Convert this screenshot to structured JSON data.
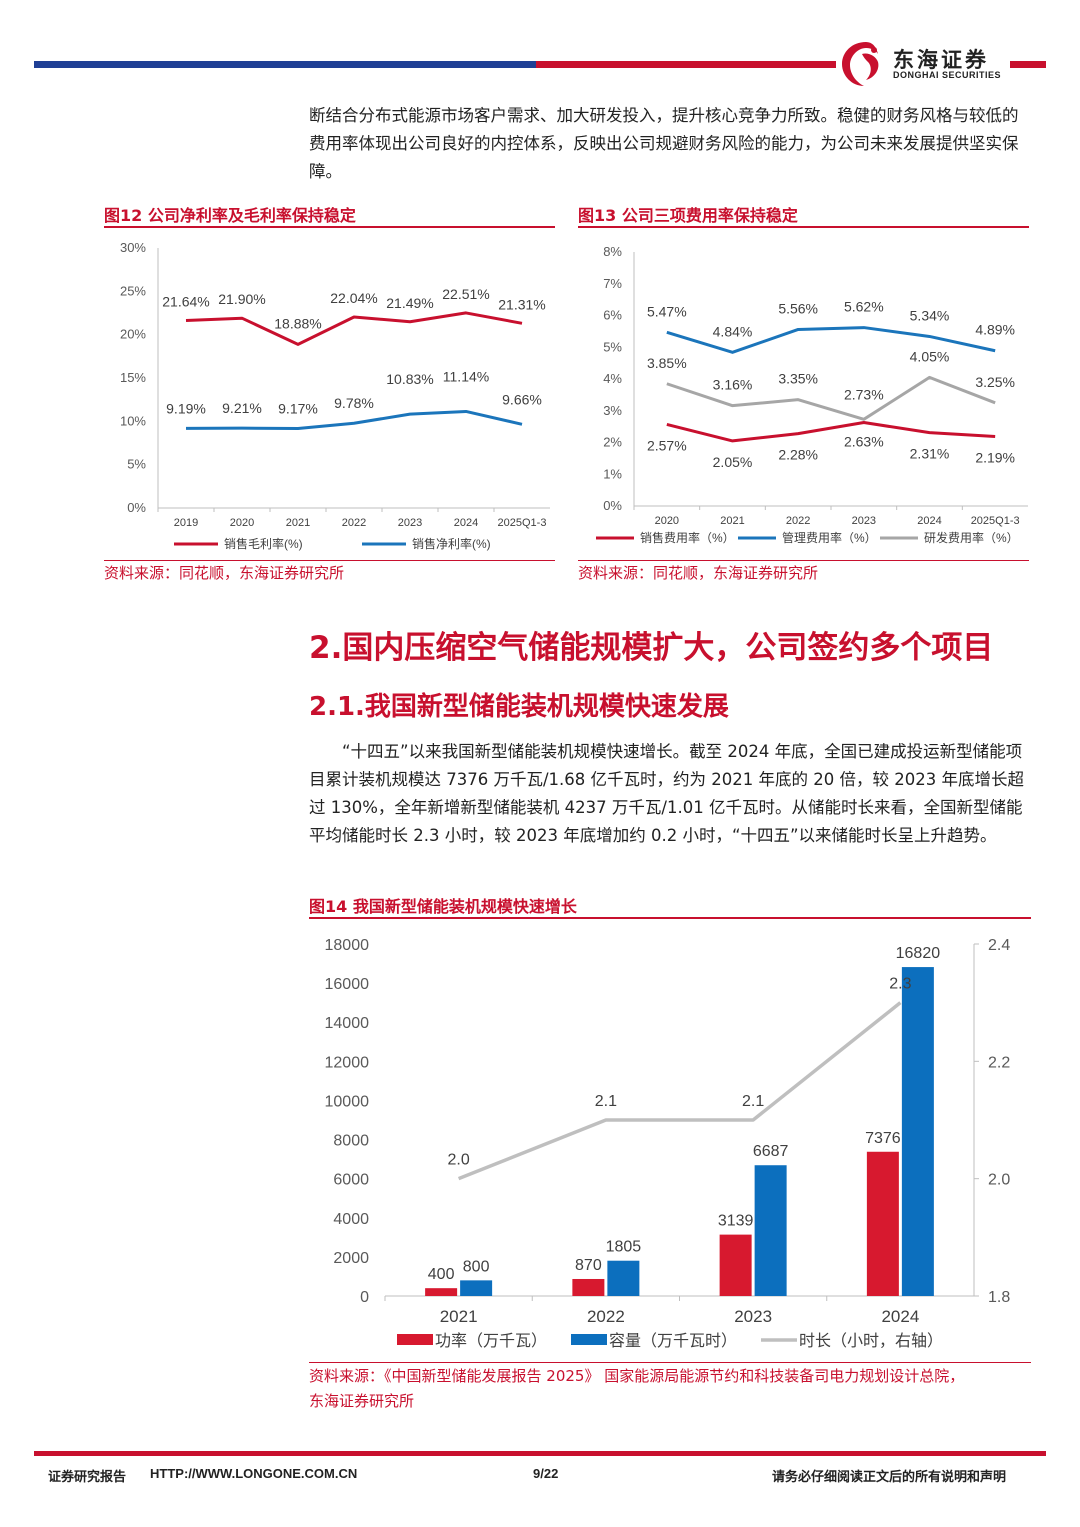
{
  "header": {
    "logo_cn": "东海证券",
    "logo_en": "DONGHAI SECURITIES",
    "colors": {
      "blue": "#1f3f95",
      "red": "#c8102e"
    }
  },
  "intro_paragraph": "断结合分布式能源市场客户需求、加大研发投入，提升核心竞争力所致。稳健的财务风格与较低的费用率体现出公司良好的内控体系，反映出公司规避财务风险的能力，为公司未来发展提供坚实保障。",
  "fig12": {
    "title": "图12  公司净利率及毛利率保持稳定",
    "source": "资料来源：同花顺，东海证券研究所"
  },
  "fig13": {
    "title": "图13  公司三项费用率保持稳定",
    "source": "资料来源：同花顺，东海证券研究所"
  },
  "section": {
    "h1": "2.国内压缩空气储能规模扩大，公司签约多个项目",
    "h2": "2.1.我国新型储能装机规模快速发展",
    "paragraph": "“十四五”以来我国新型储能装机规模快速增长。截至 2024 年底，全国已建成投运新型储能项目累计装机规模达 7376 万千瓦/1.68 亿千瓦时，约为 2021 年底的 20 倍，较 2023 年底增长超过 130%，全年新增新型储能装机 4237 万千瓦/1.01 亿千瓦时。从储能时长来看，全国新型储能平均储能时长 2.3 小时，较 2023 年底增加约 0.2 小时，“十四五”以来储能时长呈上升趋势。"
  },
  "fig14": {
    "title": "图14  我国新型储能装机规模快速增长",
    "source_line1": "资料来源：《中国新型储能发展报告 2025》 国家能源局能源节约和科技装备司电力规划设计总院，",
    "source_line2": "东海证券研究所"
  },
  "footer": {
    "left": "证券研究报告",
    "url": "HTTP://WWW.LONGONE.COM.CN",
    "page": "9/22",
    "right": "请务必仔细阅读正文后的所有说明和声明"
  },
  "chart_data": [
    {
      "id": "fig12",
      "type": "line",
      "categories": [
        "2019",
        "2020",
        "2021",
        "2022",
        "2023",
        "2024",
        "2025Q1-3"
      ],
      "ylim": [
        0,
        30
      ],
      "yticks": [
        "0%",
        "5%",
        "10%",
        "15%",
        "20%",
        "25%",
        "30%"
      ],
      "series": [
        {
          "name": "销售毛利率(%)",
          "color": "#c8102e",
          "values": [
            21.64,
            21.9,
            18.88,
            22.04,
            21.49,
            22.51,
            21.31
          ],
          "labels": [
            "21.64%",
            "21.90%",
            "18.88%",
            "22.04%",
            "21.49%",
            "22.51%",
            "21.31%"
          ]
        },
        {
          "name": "销售净利率(%)",
          "color": "#1b75bb",
          "values": [
            9.19,
            9.21,
            9.17,
            9.78,
            10.83,
            11.14,
            9.66
          ],
          "labels": [
            "9.19%",
            "9.21%",
            "9.17%",
            "9.78%",
            "10.83%",
            "11.14%",
            "9.66%"
          ]
        }
      ]
    },
    {
      "id": "fig13",
      "type": "line",
      "categories": [
        "2020",
        "2021",
        "2022",
        "2023",
        "2024",
        "2025Q1-3"
      ],
      "ylim": [
        0,
        8
      ],
      "yticks": [
        "0%",
        "1%",
        "2%",
        "3%",
        "4%",
        "5%",
        "6%",
        "7%",
        "8%"
      ],
      "series": [
        {
          "name": "销售费用率（%）",
          "color": "#c8102e",
          "values": [
            2.57,
            2.05,
            2.28,
            2.63,
            2.31,
            2.19
          ],
          "labels": [
            "2.57%",
            "2.05%",
            "2.28%",
            "2.63%",
            "2.31%",
            "2.19%"
          ]
        },
        {
          "name": "管理费用率（%）",
          "color": "#1b75bb",
          "values": [
            5.47,
            4.84,
            5.56,
            5.62,
            5.34,
            4.89
          ],
          "labels": [
            "5.47%",
            "4.84%",
            "5.56%",
            "5.62%",
            "5.34%",
            "4.89%"
          ]
        },
        {
          "name": "研发费用率（%）",
          "color": "#a6a6a6",
          "values": [
            3.85,
            3.16,
            3.35,
            2.73,
            4.05,
            3.25
          ],
          "labels": [
            "3.85%",
            "3.16%",
            "3.35%",
            "2.73%",
            "4.05%",
            "3.25%"
          ]
        }
      ]
    },
    {
      "id": "fig14",
      "type": "bar",
      "categories": [
        "2021",
        "2022",
        "2023",
        "2024"
      ],
      "ylim": [
        0,
        18000
      ],
      "yticks": [
        "0",
        "2000",
        "4000",
        "6000",
        "8000",
        "10000",
        "12000",
        "14000",
        "16000",
        "18000"
      ],
      "y2lim": [
        1.8,
        2.4
      ],
      "y2ticks": [
        "1.8",
        "2.0",
        "2.2",
        "2.4"
      ],
      "series": [
        {
          "name": "功率（万千瓦）",
          "color": "#d7192f",
          "values": [
            400,
            870,
            3139,
            7376
          ],
          "labels": [
            "400",
            "870",
            "3139",
            "7376"
          ]
        },
        {
          "name": "容量（万千瓦时）",
          "color": "#0c6fbe",
          "values": [
            800,
            1805,
            6687,
            16820
          ],
          "labels": [
            "800",
            "1805",
            "6687",
            "16820"
          ]
        },
        {
          "name": "时长（小时，右轴）",
          "color": "#bfbfbf",
          "type": "line",
          "axis": "right",
          "values": [
            2.0,
            2.1,
            2.1,
            2.3
          ],
          "labels": [
            "2.0",
            "2.1",
            "2.1",
            "2.3"
          ]
        }
      ]
    }
  ]
}
